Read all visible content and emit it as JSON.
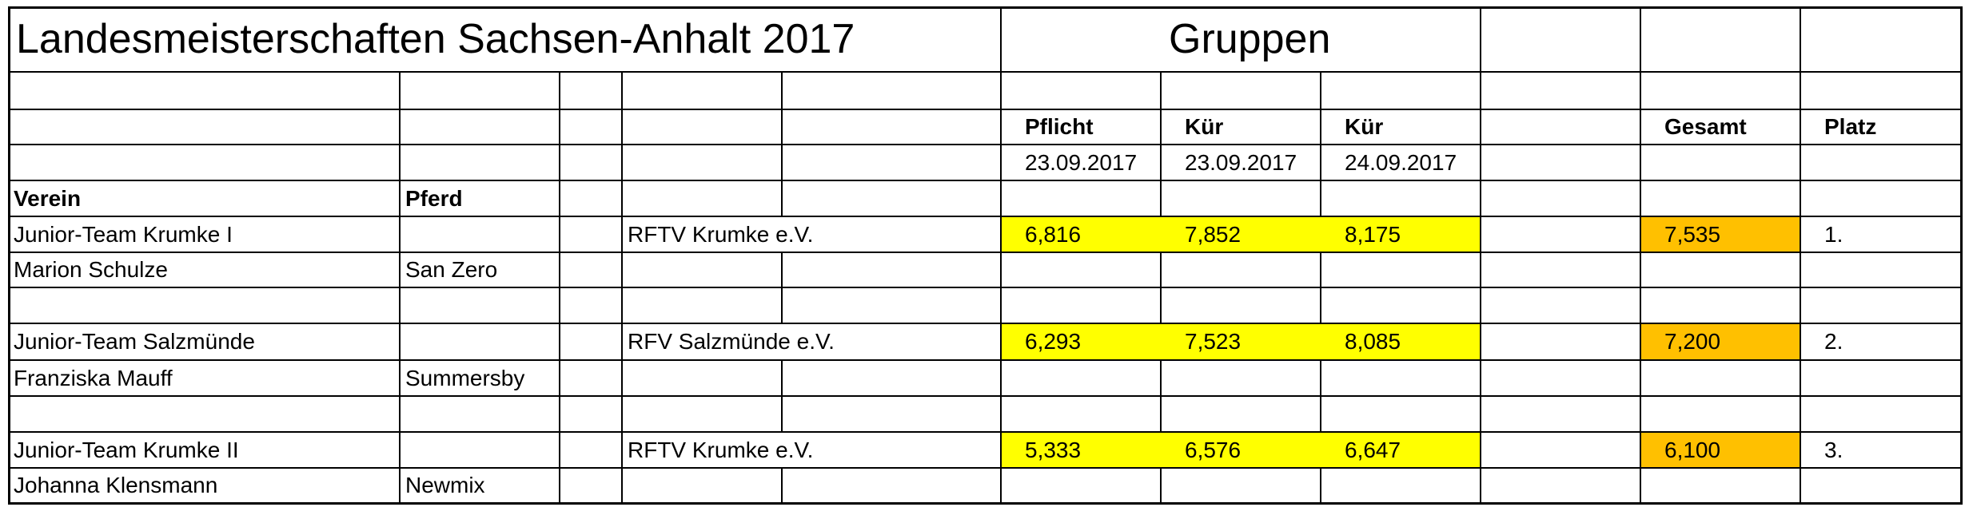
{
  "title": "Landesmeisterschaften Sachsen-Anhalt 2017",
  "section": "Gruppen",
  "headers": {
    "pflicht": "Pflicht",
    "kuer1": "Kür",
    "kuer2": "Kür",
    "gesamt": "Gesamt",
    "platz": "Platz",
    "date_pflicht": "23.09.2017",
    "date_kuer1": "23.09.2017",
    "date_kuer2": "24.09.2017",
    "verein": "Verein",
    "pferd": "Pferd"
  },
  "teams": [
    {
      "team": "Junior-Team Krumke I",
      "club": "RFTV Krumke e.V.",
      "pflicht": "6,816",
      "kuer1": "7,852",
      "kuer2": "8,175",
      "gesamt": "7,535",
      "platz": "1.",
      "longeur": "Marion Schulze",
      "horse": "San Zero"
    },
    {
      "team": "Junior-Team Salzmünde",
      "club": "RFV Salzmünde e.V.",
      "pflicht": "6,293",
      "kuer1": "7,523",
      "kuer2": "8,085",
      "gesamt": "7,200",
      "platz": "2.",
      "longeur": "Franziska Mauff",
      "horse": "Summersby"
    },
    {
      "team": "Junior-Team Krumke II",
      "club": "RFTV Krumke e.V.",
      "pflicht": "5,333",
      "kuer1": "6,576",
      "kuer2": "6,647",
      "gesamt": "6,100",
      "platz": "3.",
      "longeur": "Johanna Klensmann",
      "horse": "Newmix"
    }
  ],
  "colors": {
    "score_highlight": "#ffff00",
    "total_highlight": "#ffc000",
    "grid": "#000000"
  }
}
